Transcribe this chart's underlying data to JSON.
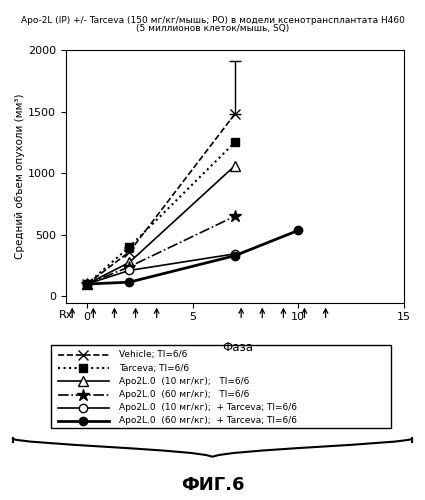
{
  "title_line1": "Apo-2L (IP) +/- Tarceva (150 мг/кг/мышь; PO) в модели ксенотрансплантата H460",
  "title_line2": "(5 миллионов клеток/мышь, SQ)",
  "ylabel": "Средний объем опухоли (мм³)",
  "xlabel": "Фаза",
  "rx_label": "Rx",
  "fig_label": "ФИГ.6",
  "xlim": [
    -1,
    15
  ],
  "ylim": [
    -50,
    2000
  ],
  "xticks": [
    0,
    5,
    10,
    15
  ],
  "yticks": [
    0,
    500,
    1000,
    1500,
    2000
  ],
  "series": [
    {
      "x": [
        0,
        2,
        7
      ],
      "y": [
        100,
        360,
        1480
      ],
      "yerr_hi": [
        0,
        60,
        430
      ],
      "linestyle": "--",
      "marker": "x",
      "markersize": 7,
      "linewidth": 1.2,
      "mfc": "black",
      "legend": "- -x- -  Vehicle; TI=6/6"
    },
    {
      "x": [
        0,
        2,
        7
      ],
      "y": [
        100,
        400,
        1250
      ],
      "yerr_hi": [
        0,
        0,
        0
      ],
      "linestyle": ":",
      "marker": "s",
      "markersize": 6,
      "linewidth": 1.5,
      "mfc": "black",
      "legend": "......■......  Tarceva; TI=6/6"
    },
    {
      "x": [
        0,
        2,
        7
      ],
      "y": [
        100,
        275,
        1060
      ],
      "yerr_hi": [
        0,
        0,
        0
      ],
      "linestyle": "-",
      "marker": "^",
      "markersize": 7,
      "linewidth": 1.2,
      "mfc": "white",
      "legend": "—△—  Apo2L.0  (10 мг/кг);   TI=6/6"
    },
    {
      "x": [
        0,
        2,
        7
      ],
      "y": [
        100,
        240,
        650
      ],
      "yerr_hi": [
        0,
        0,
        0
      ],
      "linestyle": "-.",
      "marker": "*",
      "markersize": 9,
      "linewidth": 1.2,
      "mfc": "black",
      "legend": "—★—...  Apo2L.0  (60 мг/кг);   TI=6/6"
    },
    {
      "x": [
        0,
        2,
        7
      ],
      "y": [
        100,
        210,
        345
      ],
      "yerr_hi": [
        0,
        0,
        0
      ],
      "linestyle": "-",
      "marker": "o",
      "markersize": 6,
      "linewidth": 1.2,
      "mfc": "white",
      "legend": "—○—  Apo2L.0  (10 мг/кг);  + Tarceva; TI=6/6"
    },
    {
      "x": [
        0,
        2,
        7,
        10
      ],
      "y": [
        100,
        115,
        330,
        535
      ],
      "yerr_hi": [
        0,
        0,
        0,
        0
      ],
      "linestyle": "-",
      "marker": "o",
      "markersize": 6,
      "linewidth": 2.0,
      "mfc": "black",
      "legend": "—●—  Apo2L.0  (60 мг/кг);  + Tarceva; TI=6/6"
    }
  ],
  "rx_arrows_x": [
    -0.7,
    0.3,
    1.3,
    2.3,
    3.3,
    7.3,
    8.3,
    9.3,
    10.3,
    11.3
  ],
  "legend_items": [
    {
      "ls": "--",
      "mk": "x",
      "mfc": "black",
      "lw": 1.2,
      "ms": 7,
      "label": "Vehicle; TI=6/6"
    },
    {
      "ls": ":",
      "mk": "s",
      "mfc": "black",
      "lw": 1.5,
      "ms": 6,
      "label": "Tarceva; TI=6/6"
    },
    {
      "ls": "-",
      "mk": "^",
      "mfc": "white",
      "lw": 1.2,
      "ms": 7,
      "label": "Apo2L.0  (10 мг/кг);   TI=6/6"
    },
    {
      "ls": "-.",
      "mk": "*",
      "mfc": "black",
      "lw": 1.2,
      "ms": 9,
      "label": "Apo2L.0  (60 мг/кг);   TI=6/6"
    },
    {
      "ls": "-",
      "mk": "o",
      "mfc": "white",
      "lw": 1.2,
      "ms": 6,
      "label": "Apo2L.0  (10 мг/кг);  + Tarceva; TI=6/6"
    },
    {
      "ls": "-",
      "mk": "o",
      "mfc": "black",
      "lw": 2.0,
      "ms": 6,
      "label": "Apo2L.0  (60 мг/кг);  + Tarceva; TI=6/6"
    }
  ]
}
